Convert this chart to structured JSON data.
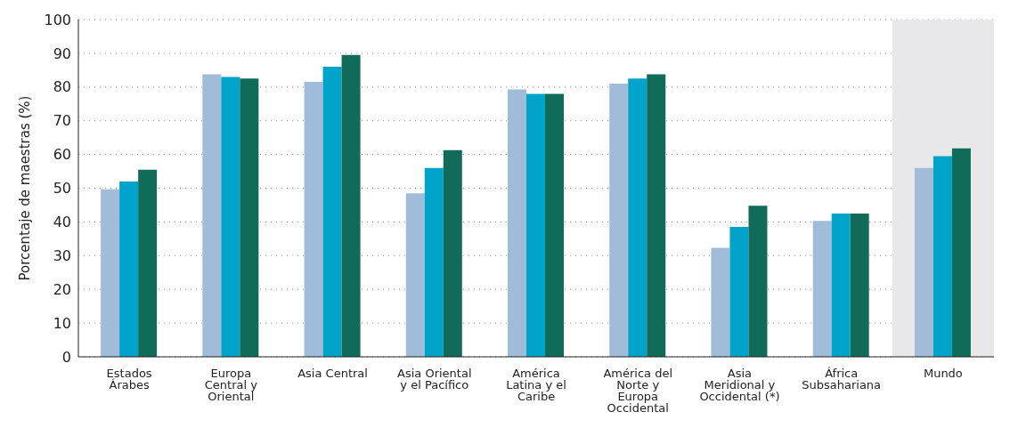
{
  "chart_data": {
    "type": "bar",
    "ylabel": "Porcentaje de maestras (%)",
    "categories": [
      "Estados Árabes",
      "Europa Central y Oriental",
      "Asia Central",
      "Asia Oriental y el Pacífico",
      "América Latina y el Caribe",
      "América del Norte y Europa Occidental",
      "Asia Meridional y Occidental (*)",
      "África Subsahariana",
      "Mundo"
    ],
    "series": [
      {
        "color": "#a0bcd8",
        "values": [
          49.7,
          83.8,
          81.5,
          48.5,
          79.3,
          81,
          32.3,
          40.3,
          56
        ]
      },
      {
        "color": "#00a3c9",
        "values": [
          52,
          83,
          86,
          56,
          78,
          82.5,
          38.5,
          42.5,
          59.5
        ]
      },
      {
        "color": "#106b58",
        "values": [
          55.5,
          82.5,
          89.5,
          61.3,
          78,
          83.8,
          44.8,
          42.5,
          61.8
        ]
      }
    ],
    "ylim": [
      0,
      100
    ],
    "yticks": [
      0,
      10,
      20,
      30,
      40,
      50,
      60,
      70,
      80,
      90,
      100
    ],
    "grid": "y",
    "bands": [
      {
        "axis": "x",
        "from": "Mundo",
        "to": "Mundo",
        "color": "#e8e8ea"
      }
    ]
  }
}
